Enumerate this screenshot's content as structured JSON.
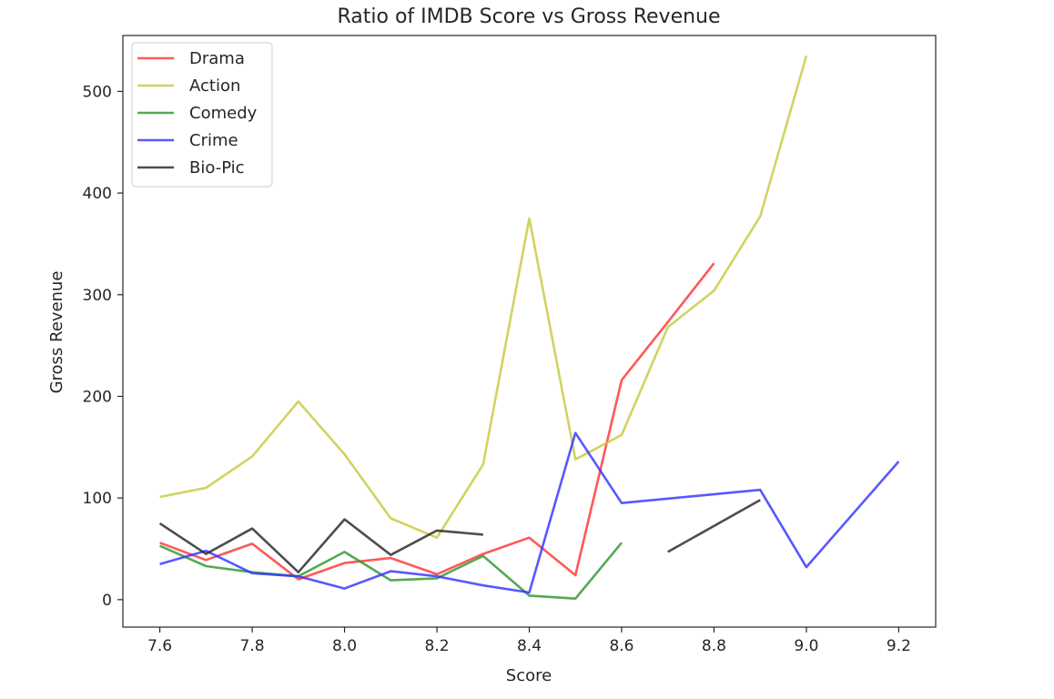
{
  "chart_data": {
    "type": "line",
    "title": "Ratio of IMDB Score vs Gross Revenue",
    "xlabel": "Score",
    "ylabel": "Gross Revenue",
    "xlim": [
      7.52,
      9.28
    ],
    "ylim": [
      -27,
      555
    ],
    "xticks": [
      7.6,
      7.8,
      8.0,
      8.2,
      8.4,
      8.6,
      8.8,
      9.0,
      9.2
    ],
    "xtick_labels": [
      "7.6",
      "7.8",
      "8.0",
      "8.2",
      "8.4",
      "8.6",
      "8.8",
      "9.0",
      "9.2"
    ],
    "yticks": [
      0,
      100,
      200,
      300,
      400,
      500
    ],
    "ytick_labels": [
      "0",
      "100",
      "200",
      "300",
      "400",
      "500"
    ],
    "grid": false,
    "legend": "top-left",
    "series": [
      {
        "name": "Drama",
        "color": "#ff3333",
        "segments": [
          [
            [
              7.6,
              56
            ],
            [
              7.7,
              39
            ],
            [
              7.8,
              55
            ],
            [
              7.9,
              20
            ],
            [
              8.0,
              36
            ],
            [
              8.1,
              41
            ],
            [
              8.2,
              25
            ],
            [
              8.3,
              45
            ],
            [
              8.4,
              61
            ],
            [
              8.5,
              24
            ],
            [
              8.6,
              216
            ],
            [
              8.7,
              273
            ],
            [
              8.8,
              331
            ]
          ]
        ]
      },
      {
        "name": "Action",
        "color": "#c8c83f",
        "segments": [
          [
            [
              7.6,
              101
            ],
            [
              7.7,
              110
            ],
            [
              7.8,
              141
            ],
            [
              7.9,
              195
            ],
            [
              8.0,
              143
            ],
            [
              8.1,
              80
            ],
            [
              8.2,
              61
            ],
            [
              8.3,
              133
            ],
            [
              8.4,
              375
            ],
            [
              8.5,
              138
            ],
            [
              8.6,
              162
            ],
            [
              8.7,
              268
            ],
            [
              8.8,
              304
            ],
            [
              8.9,
              377
            ],
            [
              9.0,
              535
            ]
          ]
        ]
      },
      {
        "name": "Comedy",
        "color": "#2f962f",
        "segments": [
          [
            [
              7.6,
              53
            ],
            [
              7.7,
              33
            ],
            [
              7.8,
              27
            ],
            [
              7.9,
              23
            ],
            [
              8.0,
              47
            ],
            [
              8.1,
              19
            ],
            [
              8.2,
              21
            ],
            [
              8.3,
              43
            ],
            [
              8.4,
              4
            ],
            [
              8.5,
              1
            ],
            [
              8.6,
              56
            ]
          ]
        ]
      },
      {
        "name": "Crime",
        "color": "#3333ff",
        "segments": [
          [
            [
              7.6,
              35
            ],
            [
              7.7,
              48
            ],
            [
              7.8,
              26
            ],
            [
              7.9,
              23
            ],
            [
              8.0,
              11
            ],
            [
              8.1,
              28
            ],
            [
              8.2,
              23
            ],
            [
              8.3,
              14
            ],
            [
              8.4,
              7
            ],
            [
              8.5,
              164
            ],
            [
              8.6,
              95
            ],
            [
              8.9,
              108
            ],
            [
              9.0,
              32
            ],
            [
              9.2,
              136
            ]
          ]
        ]
      },
      {
        "name": "Bio-Pic",
        "color": "#262626",
        "segments": [
          [
            [
              7.6,
              75
            ],
            [
              7.7,
              45
            ],
            [
              7.8,
              70
            ],
            [
              7.9,
              27
            ],
            [
              8.0,
              79
            ],
            [
              8.1,
              44
            ],
            [
              8.2,
              68
            ],
            [
              8.3,
              64
            ]
          ],
          [
            [
              8.7,
              47
            ],
            [
              8.9,
              98
            ]
          ]
        ]
      }
    ]
  }
}
